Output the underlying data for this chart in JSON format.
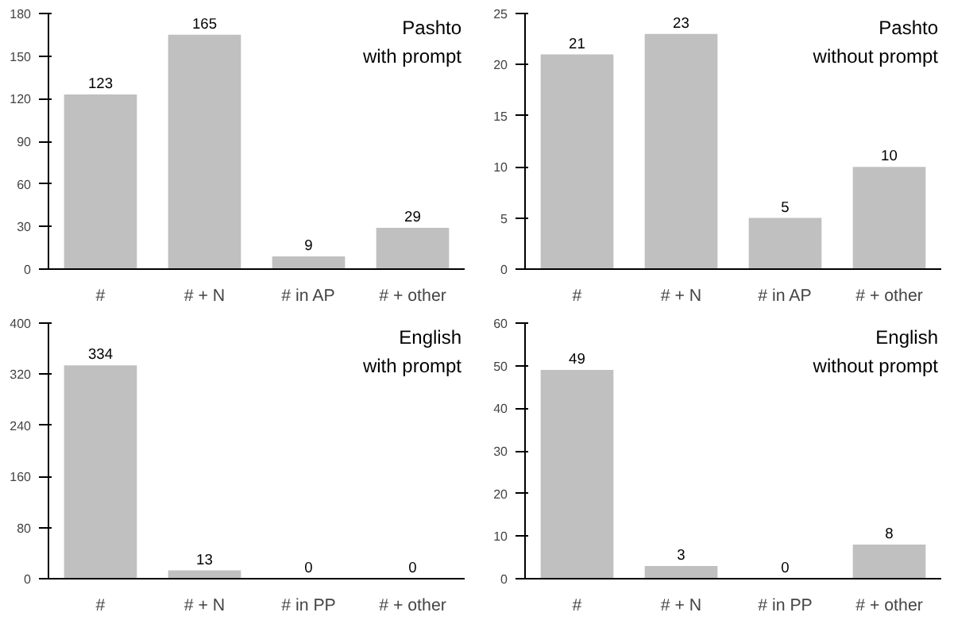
{
  "chart_data": [
    {
      "type": "bar",
      "title": "Pashto\nwith prompt",
      "categories": [
        "#",
        "# + N",
        "# in AP",
        "# + other"
      ],
      "values": [
        123,
        165,
        9,
        29
      ],
      "color": "#c0c0c0",
      "ylim": [
        0,
        180
      ],
      "yticks": [
        0,
        30,
        60,
        90,
        120,
        150,
        180
      ],
      "data_labels": true,
      "grid": false
    },
    {
      "type": "bar",
      "title": "Pashto\nwithout prompt",
      "categories": [
        "#",
        "# + N",
        "# in AP",
        "# + other"
      ],
      "values": [
        21,
        23,
        5,
        10
      ],
      "color": "#c0c0c0",
      "ylim": [
        0,
        25
      ],
      "yticks": [
        0,
        5,
        10,
        15,
        20,
        25
      ],
      "data_labels": true,
      "grid": false
    },
    {
      "type": "bar",
      "title": "English\nwith prompt",
      "categories": [
        "#",
        "# + N",
        "# in PP",
        "# + other"
      ],
      "values": [
        334,
        13,
        0,
        0
      ],
      "color": "#c0c0c0",
      "ylim": [
        0,
        400
      ],
      "yticks": [
        0,
        80,
        160,
        240,
        320,
        400
      ],
      "data_labels": true,
      "grid": false
    },
    {
      "type": "bar",
      "title": "English\nwithout prompt",
      "categories": [
        "#",
        "# + N",
        "# in PP",
        "# + other"
      ],
      "values": [
        49,
        3,
        0,
        8
      ],
      "color": "#c0c0c0",
      "ylim": [
        0,
        60
      ],
      "yticks": [
        0,
        10,
        20,
        30,
        40,
        50,
        60
      ],
      "data_labels": true,
      "grid": false
    }
  ]
}
